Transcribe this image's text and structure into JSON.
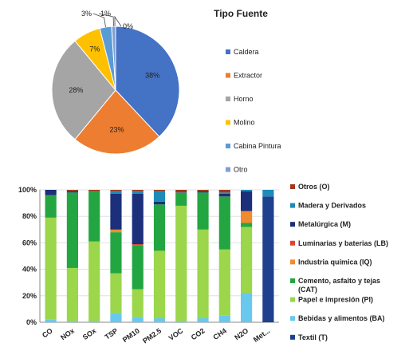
{
  "chart_data": [
    {
      "type": "pie",
      "title": "Tipo Fuente",
      "categories": [
        "Caldera",
        "Extractor",
        "Horno",
        "Molino",
        "Cabina Pintura",
        "Otro"
      ],
      "values": [
        38,
        23,
        28,
        7,
        3,
        1
      ],
      "labels": [
        "38%",
        "23%",
        "28%",
        "7%",
        "3%",
        "1%",
        "0%"
      ],
      "extra_label": "0%",
      "colors": [
        "#4472c4",
        "#ed7d31",
        "#a5a5a5",
        "#ffc000",
        "#5b9bd5",
        "#7f9fd6"
      ],
      "legend": "right"
    },
    {
      "type": "bar",
      "stacked": true,
      "percent": true,
      "categories": [
        "CO",
        "NOx",
        "SOx",
        "TSP",
        "PM10",
        "PM2.5",
        "VOC",
        "CO2",
        "CH4",
        "N2O",
        "Met..."
      ],
      "ylim": [
        0,
        100
      ],
      "yticks": [
        "0%",
        "20%",
        "40%",
        "60%",
        "80%",
        "100%"
      ],
      "legend": "right",
      "series": [
        {
          "name": "Textil (T)",
          "color": "#1f3f8f",
          "values": [
            0,
            0,
            0,
            0,
            0,
            0,
            0,
            0,
            0,
            0,
            95
          ]
        },
        {
          "name": "Bebidas y alimentos (BA)",
          "color": "#69c8ee",
          "values": [
            2,
            1,
            1,
            7,
            4,
            3,
            1,
            3,
            5,
            22,
            0
          ]
        },
        {
          "name": "Papel e impresión (PI)",
          "color": "#9bd64b",
          "values": [
            77,
            40,
            60,
            30,
            21,
            51,
            87,
            67,
            50,
            50,
            0
          ]
        },
        {
          "name": "Cemento, asfalto y tejas (CAT)",
          "color": "#23a642",
          "values": [
            17,
            57,
            38,
            31,
            33,
            35,
            9,
            28,
            40,
            3,
            0
          ]
        },
        {
          "name": "Industria química (IQ)",
          "color": "#f28a2e",
          "values": [
            0,
            0,
            0,
            2,
            0,
            0,
            0,
            0,
            0,
            9,
            0
          ]
        },
        {
          "name": "Luminarias y baterias (LB)",
          "color": "#e0452b",
          "values": [
            0,
            0,
            0,
            0,
            1,
            0,
            0,
            0,
            0,
            0,
            0
          ]
        },
        {
          "name": "Metalúrgica (M)",
          "color": "#1b2f7a",
          "values": [
            4,
            1,
            0,
            27,
            38,
            2,
            0,
            1,
            2,
            15,
            0
          ]
        },
        {
          "name": "Madera y Derivados",
          "color": "#1c8cb8",
          "values": [
            0,
            0,
            0,
            2,
            2,
            8,
            1,
            0,
            1,
            1,
            5
          ]
        },
        {
          "name": "Otros (O)",
          "color": "#a1391c",
          "values": [
            0,
            1,
            1,
            1,
            1,
            1,
            2,
            1,
            2,
            0,
            0
          ]
        }
      ],
      "legend_order": [
        "Otros (O)",
        "Madera y Derivados",
        "Metalúrgica (M)",
        "Luminarias y baterias (LB)",
        "Industria química (IQ)",
        "Cemento, asfalto y tejas (CAT)",
        "Papel e impresión (PI)",
        "Bebidas y alimentos (BA)",
        "Textil (T)"
      ],
      "legend_display": [
        "Otros (O)",
        "Madera y Derivados",
        "Metalúrgica (M)",
        "Luminarias y baterias (LB)",
        "Industria química (IQ)",
        "Cemento, asfalto y tejas|(CAT)",
        "Papel e impresión (PI)",
        "Bebidas y alimentos (BA)",
        "Textil (T)"
      ]
    }
  ]
}
